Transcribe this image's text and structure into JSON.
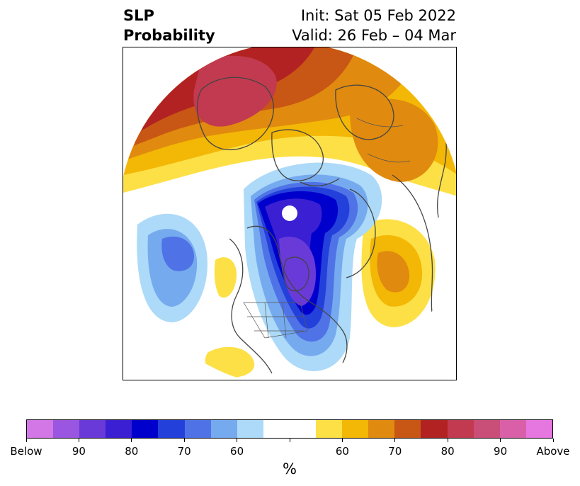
{
  "title": {
    "left_line1": "SLP",
    "left_line2": "Probability",
    "right_line1": "Init: Sat 05 Feb 2022",
    "right_line2": "Valid: 26 Feb – 04 Mar"
  },
  "colorbar": {
    "colors": [
      "#d376e6",
      "#9a56e0",
      "#6a3ad9",
      "#3b1fd3",
      "#0000cc",
      "#2440db",
      "#4f73e6",
      "#76aaef",
      "#acdaf8",
      "#ffffff",
      "#ffffff",
      "#fde046",
      "#f3b705",
      "#e08a0f",
      "#c85614",
      "#b22222",
      "#c23a4f",
      "#c94e78",
      "#d960a8",
      "#e676e0"
    ],
    "labels": [
      "Below",
      "90",
      "80",
      "70",
      "60",
      "60",
      "70",
      "80",
      "90",
      "Above"
    ],
    "unit": "%"
  }
}
